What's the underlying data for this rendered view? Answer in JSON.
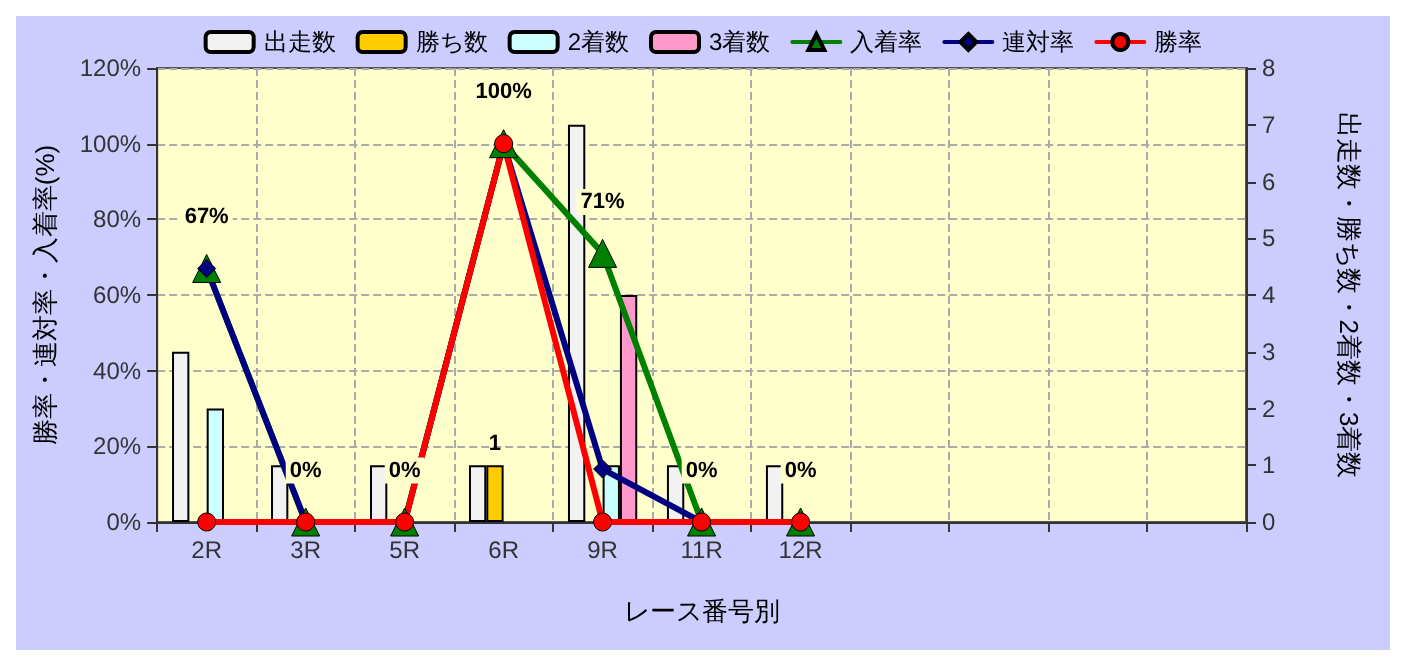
{
  "chart_data": {
    "type": "bar",
    "xlabel": "レース番号別",
    "ylabel": "勝率・連対率・入着率(%)",
    "y2label": "出走数・勝ち数・2着数・3着数",
    "categories": [
      "2R",
      "3R",
      "5R",
      "6R",
      "9R",
      "11R",
      "12R",
      null,
      null,
      null,
      null
    ],
    "series": [
      {
        "name": "出走数",
        "axis": "y2",
        "color": "#f2f2f2",
        "values": [
          3,
          1,
          1,
          1,
          7,
          1,
          1,
          null,
          null,
          null,
          null
        ]
      },
      {
        "name": "勝ち数",
        "axis": "y2",
        "color": "#ffcc00",
        "values": [
          null,
          null,
          null,
          1,
          null,
          null,
          null,
          null,
          null,
          null,
          null
        ],
        "value_labels": [
          null,
          null,
          null,
          "1",
          null,
          null,
          null,
          null,
          null,
          null,
          null
        ]
      },
      {
        "name": "2着数",
        "axis": "y2",
        "color": "#ccffff",
        "values": [
          2,
          null,
          null,
          null,
          1,
          null,
          null,
          null,
          null,
          null,
          null
        ]
      },
      {
        "name": "3着数",
        "axis": "y2",
        "color": "#ff99cc",
        "values": [
          null,
          null,
          null,
          null,
          4,
          null,
          null,
          null,
          null,
          null,
          null
        ]
      },
      {
        "name": "入着率",
        "type": "line",
        "color": "#008000",
        "marker": "triangle",
        "values": [
          67,
          0,
          0,
          100,
          71,
          0,
          0,
          null,
          null,
          null,
          null
        ],
        "value_labels": [
          "67%",
          "0%",
          "0%",
          "100%",
          "71%",
          "0%",
          "0%",
          null,
          null,
          null,
          null
        ]
      },
      {
        "name": "連対率",
        "type": "line",
        "color": "#000080",
        "marker": "diamond",
        "values": [
          67,
          0,
          0,
          100,
          14,
          0,
          0,
          null,
          null,
          null,
          null
        ]
      },
      {
        "name": "勝率",
        "type": "line",
        "color": "#ff0000",
        "marker": "circle",
        "values": [
          0,
          0,
          0,
          100,
          0,
          0,
          0,
          null,
          null,
          null,
          null
        ]
      }
    ],
    "ylim": [
      0,
      120
    ],
    "yticks": [
      {
        "value": 0,
        "label": "0%"
      },
      {
        "value": 20,
        "label": "20%"
      },
      {
        "value": 40,
        "label": "40%"
      },
      {
        "value": 60,
        "label": "60%"
      },
      {
        "value": 80,
        "label": "80%"
      },
      {
        "value": 100,
        "label": "100%"
      },
      {
        "value": 120,
        "label": "120%"
      }
    ],
    "y2lim": [
      0,
      8
    ],
    "y2ticks": [
      0,
      1,
      2,
      3,
      4,
      5,
      6,
      7,
      8
    ],
    "grid": true,
    "legend": "top"
  }
}
